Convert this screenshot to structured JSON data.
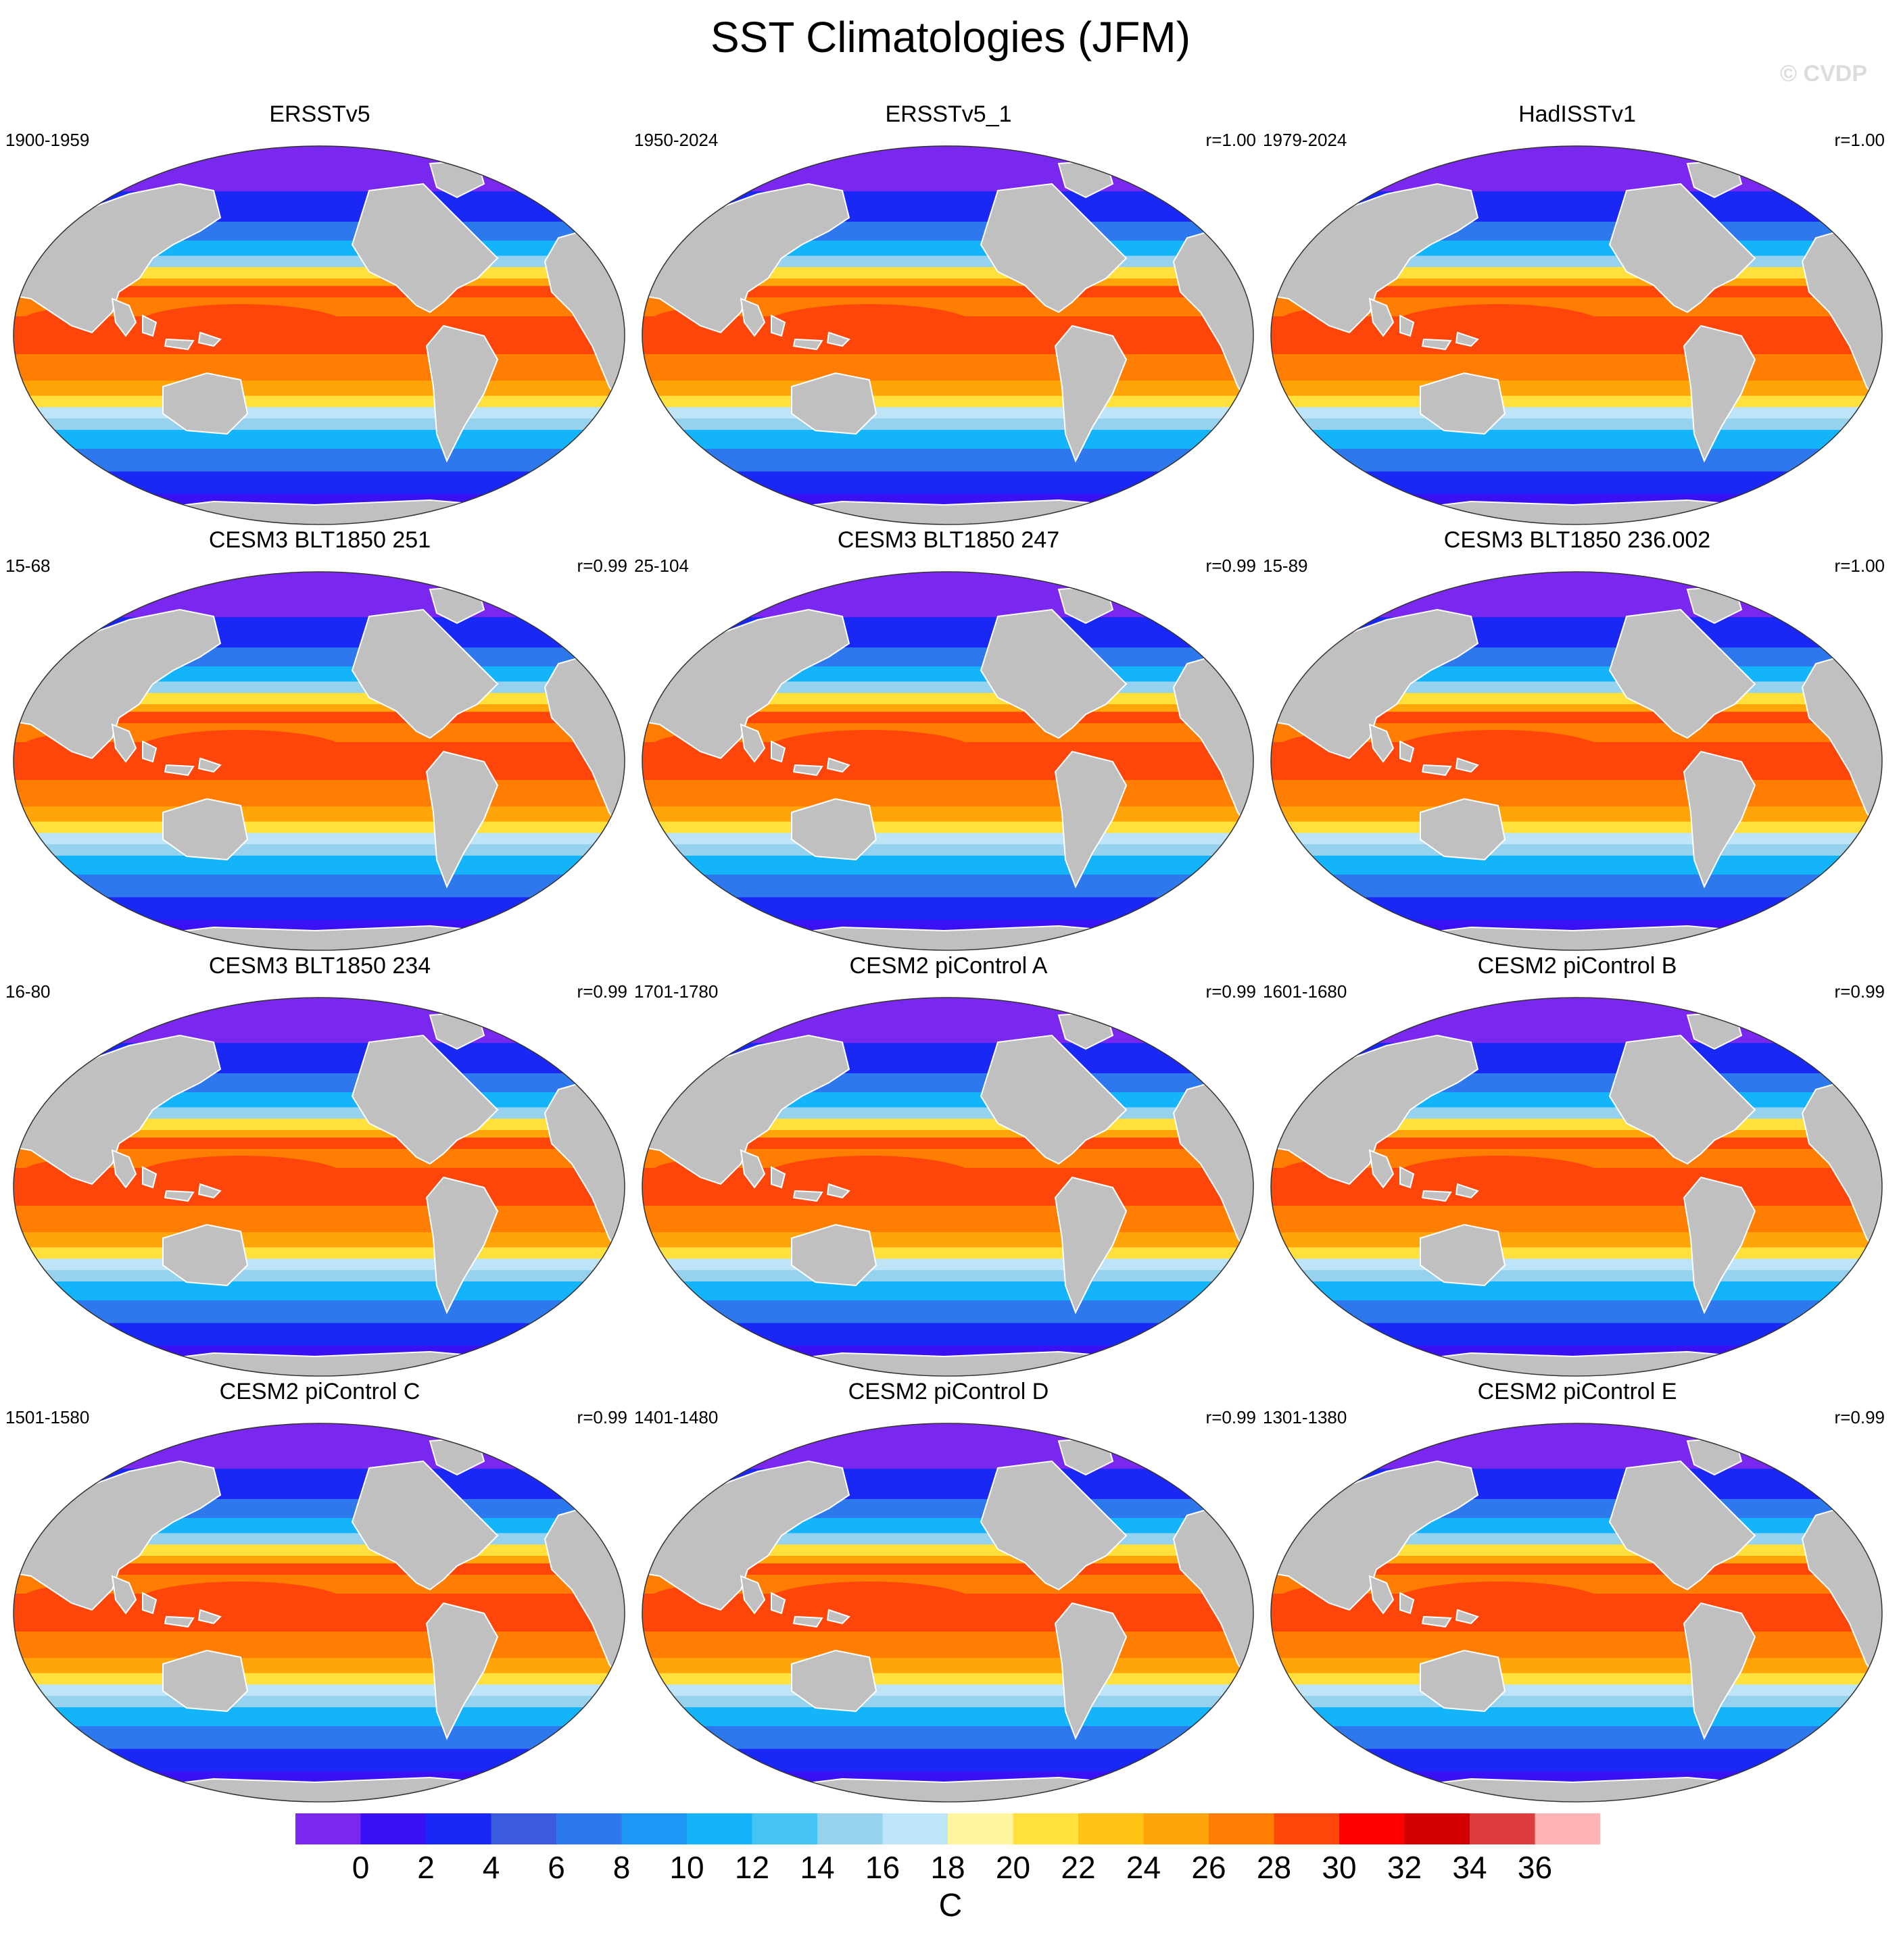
{
  "figure": {
    "title": "SST Climatologies (JFM)",
    "watermark": "© CVDP"
  },
  "panels": [
    {
      "title": "ERSSTv5",
      "period": "1900-1959",
      "corr": ""
    },
    {
      "title": "ERSSTv5_1",
      "period": "1950-2024",
      "corr": "r=1.00"
    },
    {
      "title": "HadISSTv1",
      "period": "1979-2024",
      "corr": "r=1.00"
    },
    {
      "title": "CESM3 BLT1850 251",
      "period": "15-68",
      "corr": "r=0.99"
    },
    {
      "title": "CESM3 BLT1850 247",
      "period": "25-104",
      "corr": "r=0.99"
    },
    {
      "title": "CESM3 BLT1850 236.002",
      "period": "15-89",
      "corr": "r=1.00"
    },
    {
      "title": "CESM3 BLT1850 234",
      "period": "16-80",
      "corr": "r=0.99"
    },
    {
      "title": "CESM2 piControl A",
      "period": "1701-1780",
      "corr": "r=0.99"
    },
    {
      "title": "CESM2 piControl B",
      "period": "1601-1680",
      "corr": "r=0.99"
    },
    {
      "title": "CESM2 piControl C",
      "period": "1501-1580",
      "corr": "r=0.99"
    },
    {
      "title": "CESM2 piControl D",
      "period": "1401-1480",
      "corr": "r=0.99"
    },
    {
      "title": "CESM2 piControl E",
      "period": "1301-1380",
      "corr": "r=0.99"
    }
  ],
  "colorbar": {
    "ticks": [
      "0",
      "2",
      "4",
      "6",
      "8",
      "10",
      "12",
      "14",
      "16",
      "18",
      "20",
      "22",
      "24",
      "26",
      "28",
      "30",
      "32",
      "34",
      "36"
    ],
    "colors": [
      "#7a28f0",
      "#3a10f5",
      "#1a28f5",
      "#3a5ae0",
      "#2e78ee",
      "#1e96f5",
      "#14b4fa",
      "#46c4f5",
      "#96d2ee",
      "#bee4f8",
      "#fff5a0",
      "#ffe03c",
      "#ffc314",
      "#ffa50a",
      "#ff7d00",
      "#ff460a",
      "#ff0000",
      "#d20000",
      "#dc3c3c",
      "#ffb4b4"
    ],
    "units": "C"
  },
  "map_style": {
    "land_color": "#c0c0c0",
    "polar_ocean_color": "#8232f0"
  }
}
